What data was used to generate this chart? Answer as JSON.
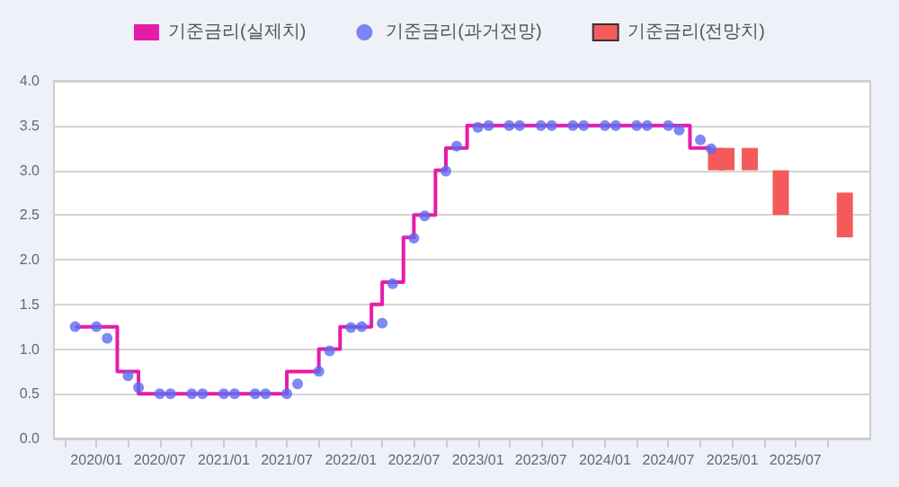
{
  "chart_data": {
    "type": "step",
    "x": [
      "2019-11",
      "2020-03",
      "2020-05",
      "2021-07",
      "2021-10",
      "2021-12",
      "2022-03",
      "2022-04",
      "2022-06",
      "2022-07",
      "2022-09",
      "2022-10",
      "2022-12",
      "2024-09",
      "2024-11"
    ],
    "series": [
      {
        "name": "기준금리(실제치)",
        "color": "#e61ca8",
        "values": [
          1.25,
          0.75,
          0.5,
          0.75,
          1.0,
          1.25,
          1.5,
          1.75,
          2.25,
          2.5,
          3.0,
          3.25,
          3.5,
          3.25,
          3.25
        ]
      },
      {
        "name": "기준금리(과거전망)",
        "type": "scatter",
        "color": "#5c6cf2",
        "marker": "circle",
        "x": [
          "2019-11",
          "2020-01",
          "2020-02",
          "2020-04",
          "2020-05",
          "2020-07",
          "2020-08",
          "2020-10",
          "2020-11",
          "2021-01",
          "2021-02",
          "2021-04",
          "2021-05",
          "2021-07",
          "2021-08",
          "2021-10",
          "2021-11",
          "2022-01",
          "2022-02",
          "2022-04",
          "2022-05",
          "2022-07",
          "2022-08",
          "2022-10",
          "2022-11",
          "2023-01",
          "2023-02",
          "2023-04",
          "2023-05",
          "2023-07",
          "2023-08",
          "2023-10",
          "2023-11",
          "2024-01",
          "2024-02",
          "2024-04",
          "2024-05",
          "2024-07",
          "2024-08",
          "2024-10",
          "2024-11"
        ],
        "values": [
          1.25,
          1.25,
          1.12,
          0.7,
          0.57,
          0.5,
          0.5,
          0.5,
          0.5,
          0.5,
          0.5,
          0.5,
          0.5,
          0.5,
          0.61,
          0.75,
          0.98,
          1.24,
          1.25,
          1.29,
          1.73,
          2.24,
          2.49,
          2.99,
          3.27,
          3.48,
          3.5,
          3.5,
          3.5,
          3.5,
          3.5,
          3.5,
          3.5,
          3.5,
          3.5,
          3.5,
          3.5,
          3.5,
          3.45,
          3.34,
          3.24
        ]
      },
      {
        "name": "기준금리(전망치)",
        "type": "bar",
        "color": "#f55a5a",
        "x": [
          "2024-11-15",
          "2024-12-15",
          "2025-02-20",
          "2025-05-20",
          "2025-11-20"
        ],
        "base": [
          3.0,
          3.0,
          3.0,
          2.5,
          2.25
        ],
        "values": [
          0.25,
          0.25,
          0.25,
          0.5,
          0.5
        ]
      }
    ],
    "xlim": [
      "2019-09",
      "2026-02"
    ],
    "xticks": [
      {
        "value": "2019-10",
        "label": null
      },
      {
        "value": "2020-01",
        "label": "2020/01"
      },
      {
        "value": "2020-04",
        "label": null
      },
      {
        "value": "2020-07",
        "label": "2020/07"
      },
      {
        "value": "2020-10",
        "label": null
      },
      {
        "value": "2021-01",
        "label": "2021/01"
      },
      {
        "value": "2021-04",
        "label": null
      },
      {
        "value": "2021-07",
        "label": "2021/07"
      },
      {
        "value": "2021-10",
        "label": null
      },
      {
        "value": "2022-01",
        "label": "2022/01"
      },
      {
        "value": "2022-04",
        "label": null
      },
      {
        "value": "2022-07",
        "label": "2022/07"
      },
      {
        "value": "2022-10",
        "label": null
      },
      {
        "value": "2023-01",
        "label": "2023/01"
      },
      {
        "value": "2023-04",
        "label": null
      },
      {
        "value": "2023-07",
        "label": "2023/07"
      },
      {
        "value": "2023-10",
        "label": null
      },
      {
        "value": "2024-01",
        "label": "2024/01"
      },
      {
        "value": "2024-04",
        "label": null
      },
      {
        "value": "2024-07",
        "label": "2024/07"
      },
      {
        "value": "2024-10",
        "label": null
      },
      {
        "value": "2025-01",
        "label": "2025/01"
      },
      {
        "value": "2025-04",
        "label": null
      },
      {
        "value": "2025-07",
        "label": "2025/07"
      },
      {
        "value": "2025-10",
        "label": null
      }
    ],
    "ylim": [
      0,
      4
    ],
    "yticks": [
      {
        "value": 0,
        "label": "0.0"
      },
      {
        "value": 0.5,
        "label": "0.5"
      },
      {
        "value": 1,
        "label": "1.0"
      },
      {
        "value": 1.5,
        "label": "1.5"
      },
      {
        "value": 2,
        "label": "2.0"
      },
      {
        "value": 2.5,
        "label": "2.5"
      },
      {
        "value": 3,
        "label": "3.0"
      },
      {
        "value": 3.5,
        "label": "3.5"
      },
      {
        "value": 4,
        "label": "4.0"
      }
    ],
    "grid": "y",
    "legend": "top",
    "line_style": "solid"
  }
}
